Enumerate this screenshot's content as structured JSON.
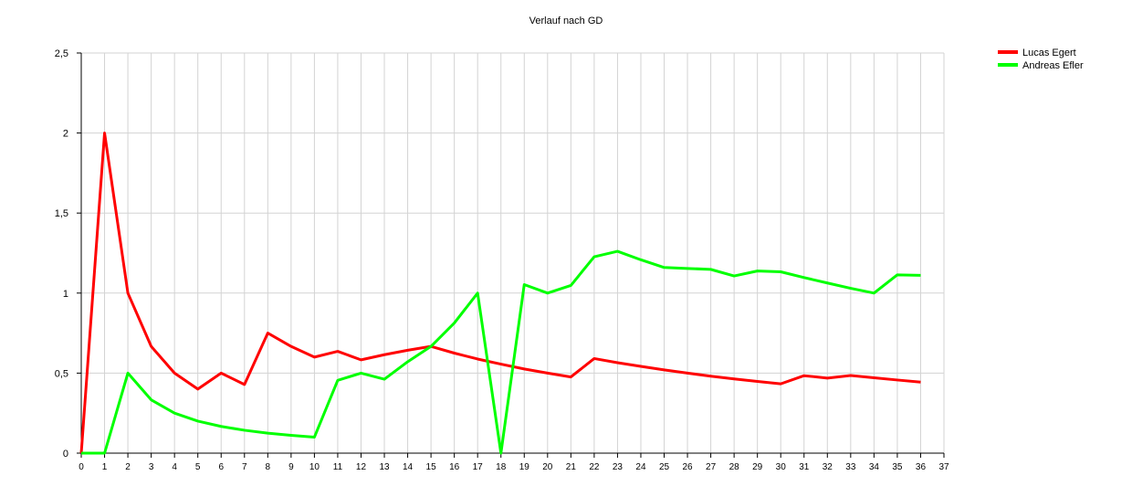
{
  "chart_data": {
    "type": "line",
    "title": "Verlauf nach GD",
    "xlabel": "",
    "ylabel": "",
    "xlim": [
      0,
      37
    ],
    "ylim": [
      0,
      2.5
    ],
    "x_ticks": [
      "0",
      "1",
      "2",
      "3",
      "4",
      "5",
      "6",
      "7",
      "8",
      "9",
      "10",
      "11",
      "12",
      "13",
      "14",
      "15",
      "16",
      "17",
      "18",
      "19",
      "20",
      "21",
      "22",
      "23",
      "24",
      "25",
      "26",
      "27",
      "28",
      "29",
      "30",
      "31",
      "32",
      "33",
      "34",
      "35",
      "36",
      "37"
    ],
    "y_ticks": [
      "0",
      "0,5",
      "1",
      "1,5",
      "2",
      "2,5"
    ],
    "y_tick_values": [
      0,
      0.5,
      1,
      1.5,
      2,
      2.5
    ],
    "grid": true,
    "legend_position": "top-right",
    "x": [
      0,
      1,
      2,
      3,
      4,
      5,
      6,
      7,
      8,
      9,
      10,
      11,
      12,
      13,
      14,
      15,
      16,
      17,
      18,
      19,
      20,
      21,
      22,
      23,
      24,
      25,
      26,
      27,
      28,
      29,
      30,
      31,
      32,
      33,
      34,
      35,
      36
    ],
    "series": [
      {
        "name": "Lucas Egert",
        "color": "#ff0000",
        "values": [
          0,
          2,
          1,
          0.667,
          0.5,
          0.4,
          0.5,
          0.429,
          0.75,
          0.667,
          0.6,
          0.636,
          0.583,
          0.615,
          0.643,
          0.667,
          0.625,
          0.588,
          0.556,
          0.526,
          0.5,
          0.476,
          0.591,
          0.565,
          0.542,
          0.52,
          0.5,
          0.481,
          0.464,
          0.448,
          0.433,
          0.484,
          0.469,
          0.485,
          0.471,
          0.457,
          0.444
        ]
      },
      {
        "name": "Andreas Efler",
        "color": "#00ff00",
        "values": [
          0,
          0,
          0.5,
          0.333,
          0.25,
          0.2,
          0.167,
          0.143,
          0.125,
          0.111,
          0.1,
          0.455,
          0.5,
          0.462,
          0.571,
          0.667,
          0.813,
          1.0,
          0,
          1.053,
          1.0,
          1.048,
          1.227,
          1.261,
          1.208,
          1.16,
          1.154,
          1.148,
          1.107,
          1.138,
          1.133,
          1.097,
          1.063,
          1.03,
          1.0,
          1.114,
          1.111
        ]
      }
    ]
  }
}
